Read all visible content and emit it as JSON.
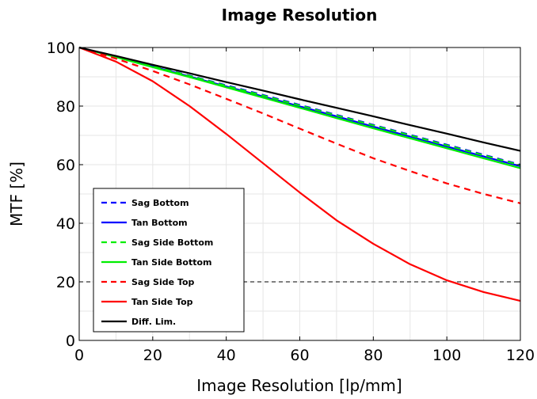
{
  "chart_data": {
    "type": "line",
    "title": "Image Resolution",
    "xlabel": "Image Resolution [lp/mm]",
    "ylabel": "MTF [%]",
    "xlim": [
      0,
      120
    ],
    "ylim": [
      0,
      100
    ],
    "xticks": [
      0,
      20,
      40,
      60,
      80,
      100,
      120
    ],
    "yticks": [
      0,
      20,
      40,
      60,
      80,
      100
    ],
    "grid": true,
    "legend_position": "lower-left",
    "x": [
      0,
      10,
      20,
      30,
      40,
      50,
      60,
      70,
      80,
      90,
      100,
      110,
      120
    ],
    "series": [
      {
        "name": "Sag Bottom",
        "color": "#0000ff",
        "dash": true,
        "values": [
          100,
          96.9,
          93.7,
          90.4,
          87.1,
          83.8,
          80.4,
          77.0,
          73.6,
          70.2,
          66.8,
          63.4,
          60.0
        ]
      },
      {
        "name": "Tan Bottom",
        "color": "#0000ff",
        "dash": false,
        "values": [
          100,
          96.8,
          93.5,
          90.1,
          86.7,
          83.3,
          79.9,
          76.5,
          73.0,
          69.6,
          66.2,
          62.8,
          59.5
        ]
      },
      {
        "name": "Sag Side Bottom",
        "color": "#00ee00",
        "dash": true,
        "values": [
          100,
          96.8,
          93.6,
          90.3,
          86.9,
          83.6,
          80.2,
          76.8,
          73.4,
          70.0,
          66.6,
          63.2,
          59.8
        ]
      },
      {
        "name": "Tan Side Bottom",
        "color": "#00ee00",
        "dash": false,
        "values": [
          100,
          96.7,
          93.3,
          89.9,
          86.4,
          82.9,
          79.4,
          75.9,
          72.4,
          69.0,
          65.6,
          62.2,
          58.8
        ]
      },
      {
        "name": "Sag Side Top",
        "color": "#ff0000",
        "dash": true,
        "values": [
          100,
          96.2,
          92.0,
          87.4,
          82.5,
          77.5,
          72.3,
          67.2,
          62.2,
          57.8,
          53.6,
          50.0,
          46.8
        ]
      },
      {
        "name": "Tan Side Top",
        "color": "#ff0000",
        "dash": false,
        "values": [
          100,
          95.2,
          88.5,
          80.0,
          70.5,
          60.5,
          50.5,
          41.0,
          33.0,
          26.0,
          20.5,
          16.5,
          13.5
        ]
      },
      {
        "name": "Diff. Lim.",
        "color": "#000000",
        "dash": false,
        "values": [
          100,
          97.1,
          94.1,
          91.2,
          88.2,
          85.3,
          82.3,
          79.4,
          76.5,
          73.5,
          70.6,
          67.6,
          64.7
        ]
      }
    ],
    "reference_line": {
      "y": 20,
      "dash": true,
      "color": "#000000"
    }
  }
}
